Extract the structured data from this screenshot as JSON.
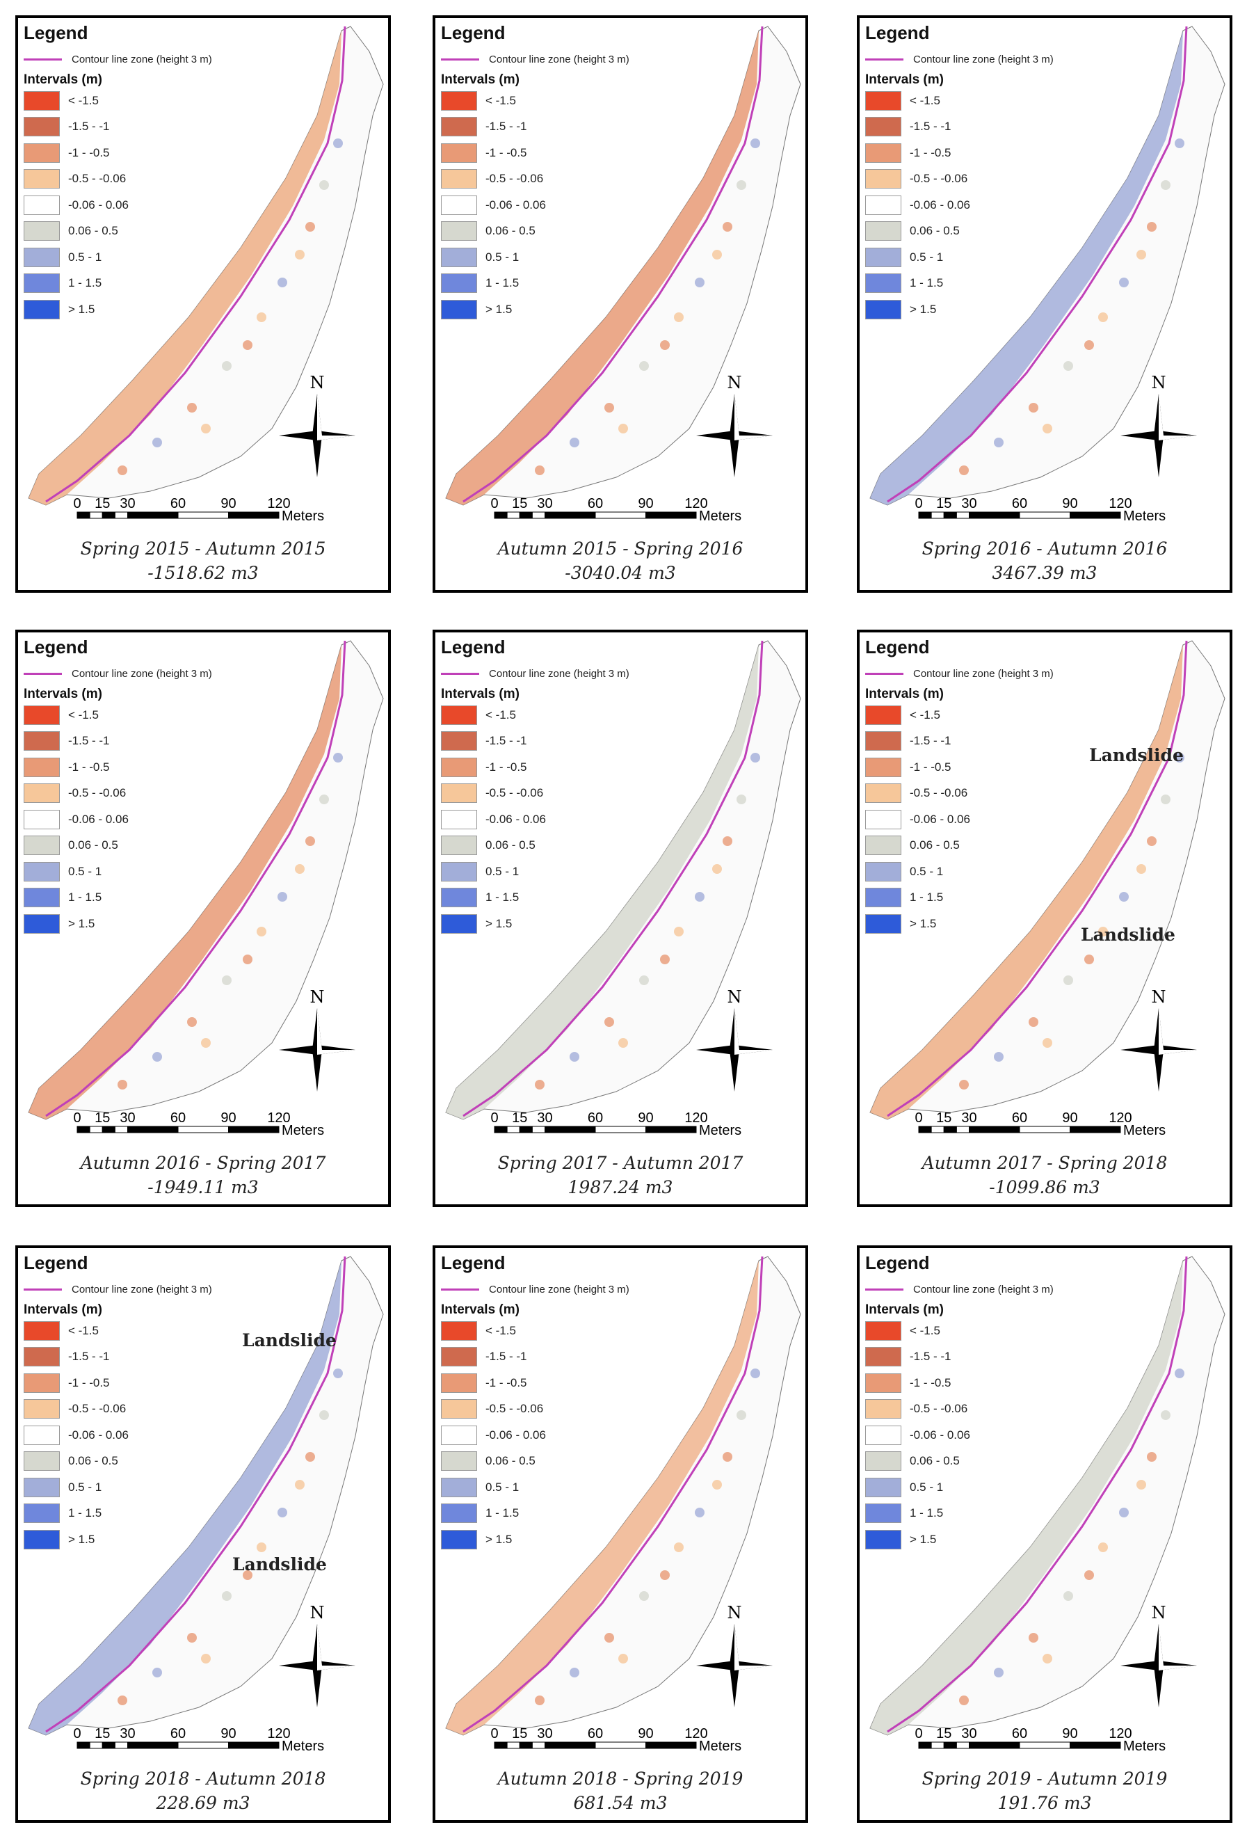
{
  "legend": {
    "title": "Legend",
    "contour_label": "Contour line zone (height 3 m)",
    "intervals_title": "Intervals (m)",
    "items": [
      {
        "label": "< -1.5",
        "color": "#e8492a"
      },
      {
        "label": "-1.5 - -1",
        "color": "#cf6a4e"
      },
      {
        "label": "-1 - -0.5",
        "color": "#e89a76"
      },
      {
        "label": "-0.5 - -0.06",
        "color": "#f6c79a"
      },
      {
        "label": "-0.06 - 0.06",
        "color": "#ffffff"
      },
      {
        "label": "0.06 - 0.5",
        "color": "#d6d8cf"
      },
      {
        "label": "0.5 - 1",
        "color": "#a2aed9"
      },
      {
        "label": "1 - 1.5",
        "color": "#6f87dc"
      },
      {
        "label": "> 1.5",
        "color": "#2e5bd9"
      }
    ]
  },
  "scale": {
    "ticks": [
      "0",
      "15",
      "30",
      "60",
      "90",
      "120"
    ],
    "unit": "Meters"
  },
  "north_label": "N",
  "panels": [
    {
      "period": "Spring 2015 - Autumn 2015",
      "volume": "-1518.62 m3",
      "beach_color": "#edae85",
      "annotations": []
    },
    {
      "period": "Autumn 2015 - Spring 2016",
      "volume": "-3040.04 m3",
      "beach_color": "#e89a76",
      "annotations": []
    },
    {
      "period": "Spring 2016 - Autumn 2016",
      "volume": "3467.39 m3",
      "beach_color": "#a2aed9",
      "annotations": []
    },
    {
      "period": "Autumn 2016 - Spring 2017",
      "volume": "-1949.11 m3",
      "beach_color": "#e89a76",
      "annotations": []
    },
    {
      "period": "Spring 2017 - Autumn 2017",
      "volume": "1987.24 m3",
      "beach_color": "#d6d8cf",
      "annotations": []
    },
    {
      "period": "Autumn 2017 - Spring 2018",
      "volume": "-1099.86 m3",
      "beach_color": "#edae85",
      "annotations": [
        "Landslide",
        "Landslide"
      ]
    },
    {
      "period": "Spring 2018 - Autumn 2018",
      "volume": "228.69 m3",
      "beach_color": "#a2aed9",
      "annotations": [
        "Landslide",
        "Landslide"
      ]
    },
    {
      "period": "Autumn 2018 - Spring 2019",
      "volume": "681.54 m3",
      "beach_color": "#f0b48e",
      "annotations": []
    },
    {
      "period": "Spring 2019 - Autumn 2019",
      "volume": "191.76 m3",
      "beach_color": "#d6d8cf",
      "annotations": []
    }
  ]
}
